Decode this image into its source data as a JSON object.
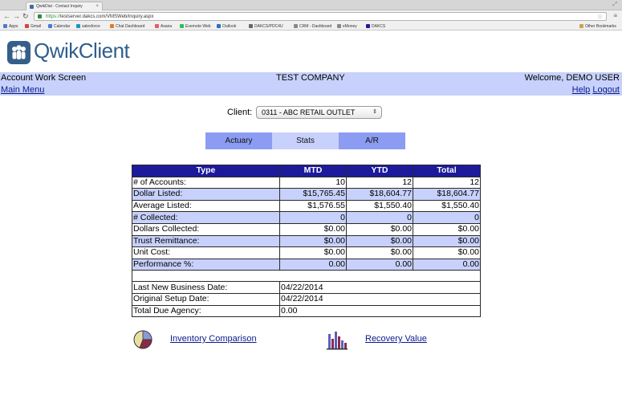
{
  "browser": {
    "tab_title": "QwikDial - Contact Inquiry",
    "url_scheme": "https://",
    "url_rest": "testserver.dakcs.com/VMSWeb/inquiry.aspx",
    "bookmarks": [
      {
        "label": "Apps",
        "color": "#4a7bd0"
      },
      {
        "label": "Gmail",
        "color": "#d44638"
      },
      {
        "label": "Calendar",
        "color": "#4a7bd0"
      },
      {
        "label": "salesforce",
        "color": "#1798c1"
      },
      {
        "label": "Chat Dashboard",
        "color": "#e07b28"
      },
      {
        "label": "Asana",
        "color": "#e8596b"
      },
      {
        "label": "Evernote Web",
        "color": "#2dbe60"
      },
      {
        "label": "Outlook",
        "color": "#2b6fc2"
      },
      {
        "label": "DAKCS/PDC4U",
        "color": "#666666"
      },
      {
        "label": "CRM - Dashboard",
        "color": "#888888"
      },
      {
        "label": "eMoney",
        "color": "#888888"
      },
      {
        "label": "DAKCS",
        "color": "#1d1a9c"
      }
    ],
    "other_bookmarks": "Other Bookmarks"
  },
  "app": {
    "logo_text": "QwikClient"
  },
  "header": {
    "screen_title": "Account Work Screen",
    "company": "TEST COMPANY",
    "welcome": "Welcome, DEMO USER",
    "main_menu": "Main Menu",
    "help": "Help",
    "logout": "Logout"
  },
  "client": {
    "label": "Client:",
    "selected": "0311 - ABC RETAIL OUTLET"
  },
  "tabs": [
    {
      "label": "Actuary",
      "active": false
    },
    {
      "label": "Stats",
      "active": true
    },
    {
      "label": "A/R",
      "active": false
    }
  ],
  "stats_table": {
    "headers": [
      "Type",
      "MTD",
      "YTD",
      "Total"
    ],
    "rows": [
      {
        "label": "# of Accounts:",
        "mtd": "10",
        "ytd": "12",
        "total": "12"
      },
      {
        "label": "Dollar Listed:",
        "mtd": "$15,765.45",
        "ytd": "$18,604.77",
        "total": "$18,604.77"
      },
      {
        "label": "Average Listed:",
        "mtd": "$1,576.55",
        "ytd": "$1,550.40",
        "total": "$1,550.40"
      },
      {
        "label": "# Collected:",
        "mtd": "0",
        "ytd": "0",
        "total": "0"
      },
      {
        "label": "Dollars Collected:",
        "mtd": "$0.00",
        "ytd": "$0.00",
        "total": "$0.00"
      },
      {
        "label": "Trust Remittance:",
        "mtd": "$0.00",
        "ytd": "$0.00",
        "total": "$0.00"
      },
      {
        "label": "Unit Cost:",
        "mtd": "$0.00",
        "ytd": "$0.00",
        "total": "$0.00"
      },
      {
        "label": "Performance %:",
        "mtd": "0.00",
        "ytd": "0.00",
        "total": "0.00"
      }
    ],
    "info_rows": [
      {
        "label": "Last New Business Date:",
        "value": "04/22/2014"
      },
      {
        "label": "Original Setup Date:",
        "value": "04/22/2014"
      },
      {
        "label": "Total Due Agency:",
        "value": "0.00"
      }
    ]
  },
  "footer": {
    "inventory_link": "Inventory Comparison",
    "recovery_link": "Recovery Value",
    "icons": [
      "pie-chart-icon",
      "bar-chart-icon"
    ]
  },
  "colors": {
    "accent_blue": "#1d1a9c",
    "band_blue": "#c7d1fb",
    "tab_blue": "#8c9cf3",
    "logo_blue": "#355f8a"
  }
}
